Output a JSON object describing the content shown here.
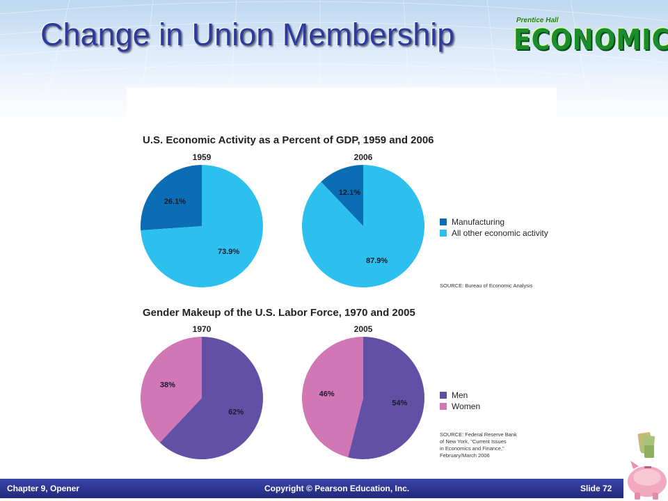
{
  "slide": {
    "title": "Change in Union Membership",
    "logo_small": "Prentice Hall",
    "logo_main": "ECONOMICS"
  },
  "footer": {
    "chapter": "Chapter 9, Opener",
    "copyright": "Copyright © Pearson Education, Inc.",
    "slide": "Slide 72"
  },
  "icons": [
    "money-piggy-bank-icon"
  ],
  "chart_data": [
    {
      "type": "pie",
      "title": "U.S. Economic Activity as a Percent of GDP, 1959 and 2006",
      "source": "SOURCE: Bureau of Economic Analysis",
      "legend": [
        {
          "name": "Manufacturing",
          "color": "#0b6db4"
        },
        {
          "name": "All other economic activity",
          "color": "#2dc0ef"
        }
      ],
      "pies": [
        {
          "label": "1959",
          "slices": [
            {
              "name": "Manufacturing",
              "value": 26.1,
              "label": "26.1%",
              "color": "#0b6db4"
            },
            {
              "name": "All other economic activity",
              "value": 73.9,
              "label": "73.9%",
              "color": "#2dc0ef"
            }
          ]
        },
        {
          "label": "2006",
          "slices": [
            {
              "name": "Manufacturing",
              "value": 12.1,
              "label": "12.1%",
              "color": "#0b6db4"
            },
            {
              "name": "All other economic activity",
              "value": 87.9,
              "label": "87.9%",
              "color": "#2dc0ef"
            }
          ]
        }
      ]
    },
    {
      "type": "pie",
      "title": "Gender Makeup of the U.S. Labor Force, 1970 and 2005",
      "source": [
        "SOURCE: Federal Reserve Bank",
        "of New York, \"Current Issues",
        "in Economics and Finance,\"",
        "February/March 2006"
      ],
      "legend": [
        {
          "name": "Men",
          "color": "#6150a6"
        },
        {
          "name": "Women",
          "color": "#d277b6"
        }
      ],
      "pies": [
        {
          "label": "1970",
          "slices": [
            {
              "name": "Women",
              "value": 38,
              "label": "38%",
              "color": "#d277b6"
            },
            {
              "name": "Men",
              "value": 62,
              "label": "62%",
              "color": "#6150a6"
            }
          ]
        },
        {
          "label": "2005",
          "slices": [
            {
              "name": "Women",
              "value": 46,
              "label": "46%",
              "color": "#d277b6"
            },
            {
              "name": "Men",
              "value": 54,
              "label": "54%",
              "color": "#6150a6"
            }
          ]
        }
      ]
    }
  ]
}
